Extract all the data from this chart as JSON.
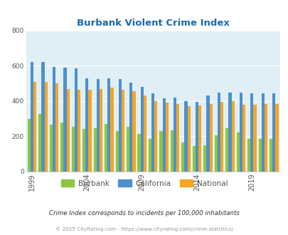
{
  "title": "Burbank Violent Crime Index",
  "years": [
    1999,
    2000,
    2001,
    2002,
    2003,
    2004,
    2005,
    2006,
    2007,
    2008,
    2009,
    2010,
    2011,
    2012,
    2013,
    2014,
    2015,
    2016,
    2017,
    2018,
    2019,
    2020,
    2021
  ],
  "burbank": [
    300,
    325,
    265,
    280,
    255,
    240,
    245,
    270,
    230,
    255,
    215,
    185,
    230,
    235,
    165,
    145,
    150,
    205,
    245,
    220,
    185,
    185,
    185
  ],
  "california": [
    620,
    620,
    595,
    590,
    585,
    530,
    525,
    530,
    525,
    505,
    480,
    445,
    415,
    420,
    400,
    395,
    430,
    450,
    450,
    450,
    445,
    445,
    445
  ],
  "national": [
    510,
    510,
    500,
    470,
    465,
    465,
    470,
    475,
    465,
    455,
    430,
    400,
    390,
    385,
    370,
    375,
    385,
    395,
    400,
    380,
    380,
    385,
    385
  ],
  "bar_color_burbank": "#8dc63f",
  "bar_color_california": "#4d90cd",
  "bar_color_national": "#f5a623",
  "plot_bg_color": "#e0eff5",
  "title_color": "#1a6aab",
  "text_color": "#555555",
  "footer_color": "#999999",
  "ylim": [
    0,
    800
  ],
  "yticks": [
    0,
    200,
    400,
    600,
    800
  ],
  "xlabel_ticks": [
    1999,
    2004,
    2009,
    2014,
    2019
  ],
  "legend_labels": [
    "Burbank",
    "California",
    "National"
  ],
  "footnote": "Crime Index corresponds to incidents per 100,000 inhabitants",
  "copyright": "© 2025 CityRating.com - https://www.cityrating.com/crime-statistics/"
}
